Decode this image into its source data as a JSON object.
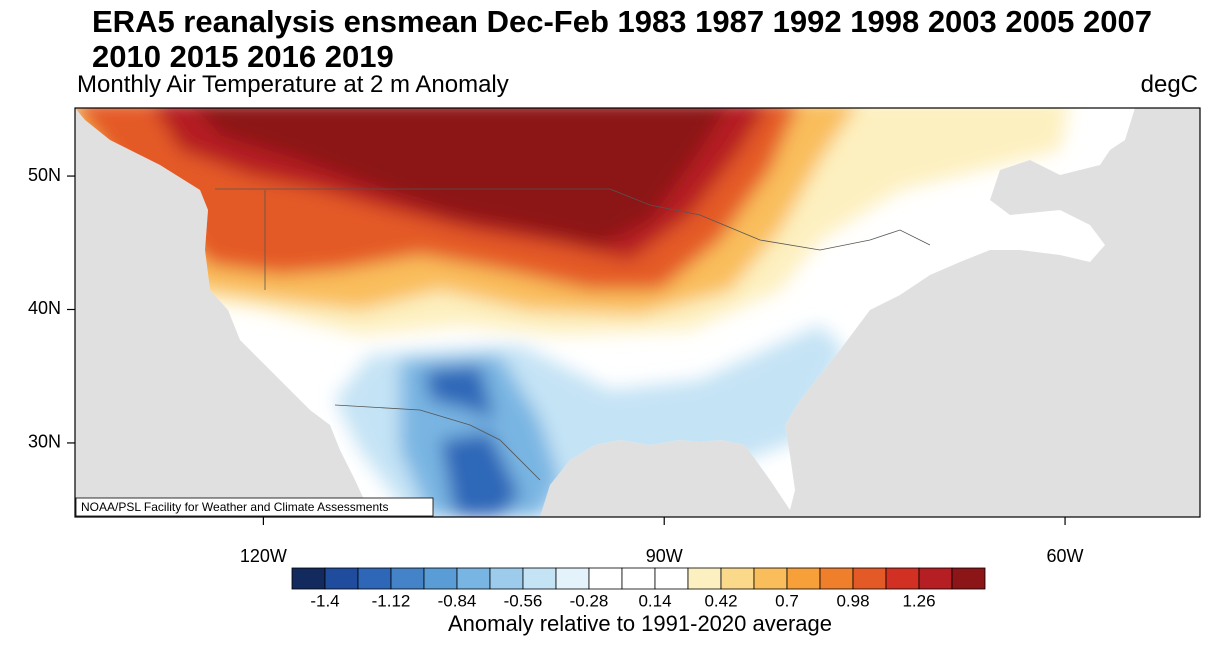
{
  "title": "ERA5 reanalysis ensmean Dec-Feb 1983 1987 1992 1998 2003 2005 2007 2010 2015 2016 2019",
  "subtitle": "Monthly Air Temperature at 2 m Anomaly",
  "units": "degC",
  "credit": "NOAA/PSL Facility for Weather and Climate Assessments",
  "map": {
    "lat_range": [
      24.45,
      55.1
    ],
    "lon_range": [
      -134.1,
      -49.9
    ],
    "lat_ticks": [
      {
        "value": 50,
        "label": "50N"
      },
      {
        "value": 40,
        "label": "40N"
      },
      {
        "value": 30,
        "label": "30N"
      }
    ],
    "lon_ticks": [
      {
        "value": -120,
        "label": "120W"
      },
      {
        "value": -90,
        "label": "90W"
      },
      {
        "value": -60,
        "label": "60W"
      }
    ]
  },
  "colorbar": {
    "levels": [
      -1.4,
      -1.26,
      -1.12,
      -0.98,
      -0.84,
      -0.7,
      -0.56,
      -0.42,
      -0.28,
      -0.14,
      0.14,
      0.28,
      0.42,
      0.56,
      0.7,
      0.84,
      0.98,
      1.12,
      1.26,
      1.4
    ],
    "colors": [
      "#132a5f",
      "#1f4c9c",
      "#2f67b8",
      "#4483c8",
      "#5a9dd6",
      "#79b5e2",
      "#9ccbec",
      "#c4e3f5",
      "#e3f2fb",
      "#ffffff",
      "#ffffff",
      "#ffffff",
      "#fdf0c0",
      "#fbd98a",
      "#f9bd5b",
      "#f7a03a",
      "#f07f2c",
      "#e45a26",
      "#d33024",
      "#b51e22",
      "#8c1518"
    ],
    "ticks": [
      -1.4,
      -1.12,
      -0.84,
      -0.56,
      -0.28,
      0.14,
      0.42,
      0.7,
      0.98,
      1.26
    ],
    "label": "Anomaly relative to 1991-2020 average"
  }
}
